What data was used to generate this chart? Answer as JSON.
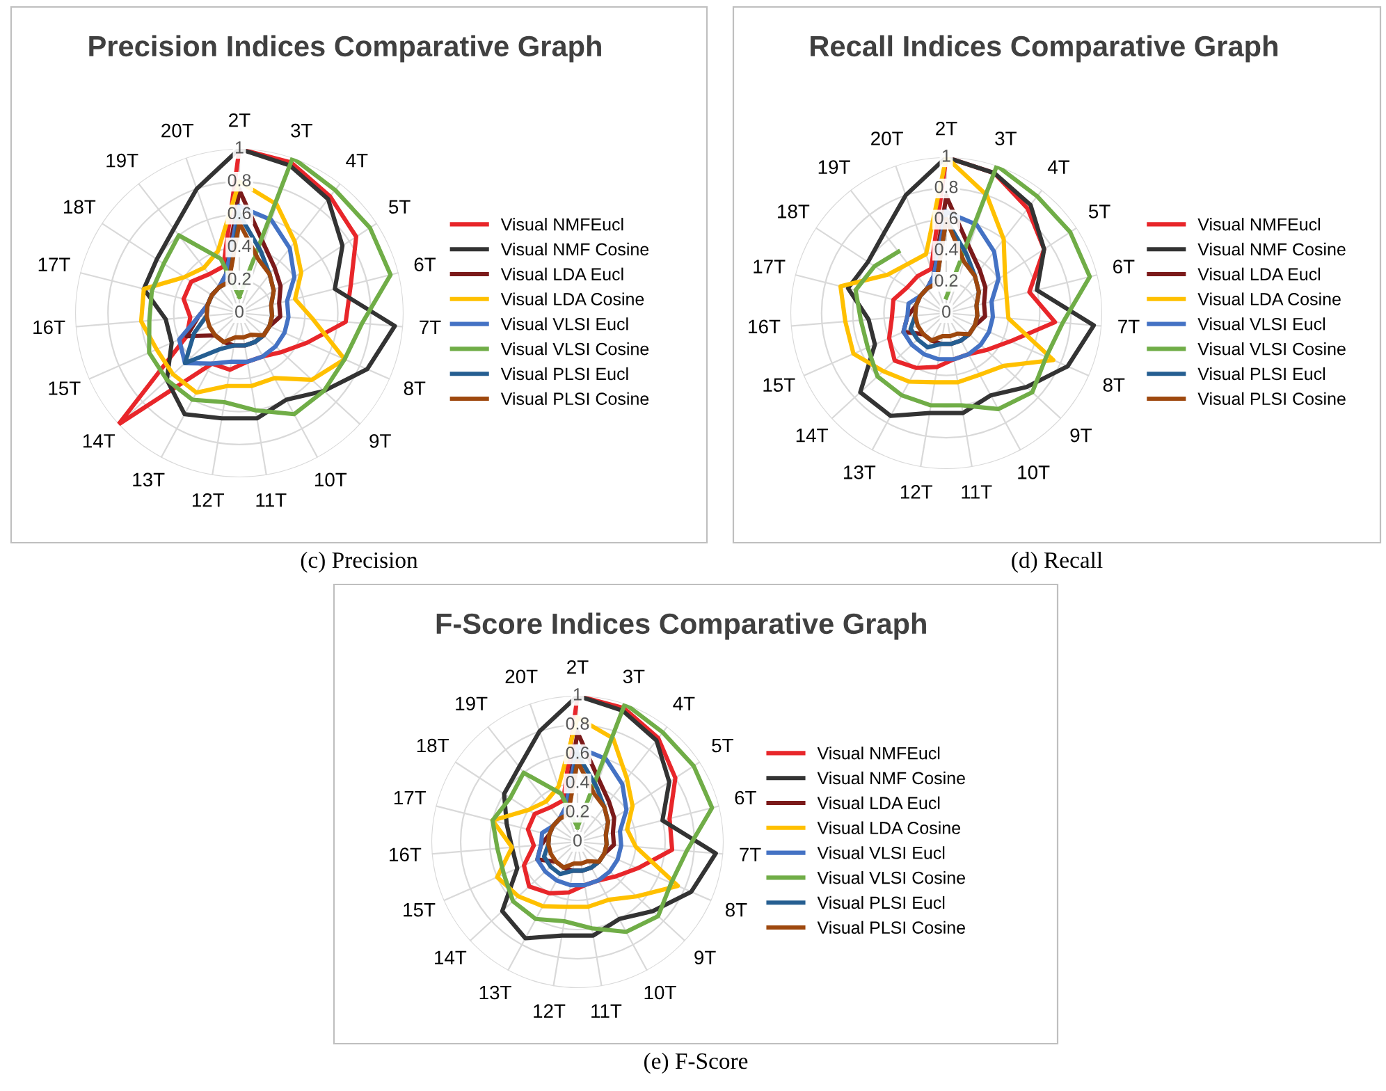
{
  "chart_data": [
    {
      "type": "radar",
      "title": "Precision Indices Comparative Graph",
      "categories": [
        "2T",
        "3T",
        "4T",
        "5T",
        "6T",
        "7T",
        "8T",
        "9T",
        "10T",
        "11T",
        "12T",
        "13T",
        "14T",
        "15T",
        "16T",
        "17T",
        "18T",
        "19T",
        "20T"
      ],
      "ylim": [
        0,
        1
      ],
      "yticks": [
        0,
        0.2,
        0.4,
        0.6,
        0.8,
        1
      ],
      "grid": true,
      "legend": "right",
      "annotations": [
        "(c) Precision"
      ],
      "series": [
        {
          "name": "Visual NMFEucl",
          "color": "#e8262a",
          "values": [
            1,
            0.97,
            0.9,
            0.85,
            0.7,
            0.65,
            0.45,
            0.35,
            0.3,
            0.3,
            0.35,
            0.35,
            1,
            0.35,
            0.3,
            0.35,
            0.35,
            0.3,
            0.3
          ]
        },
        {
          "name": "Visual NMF Cosine",
          "color": "#333333",
          "values": [
            1,
            0.95,
            0.88,
            0.75,
            0.6,
            0.95,
            0.85,
            0.7,
            0.6,
            0.65,
            0.65,
            0.7,
            0.6,
            0.45,
            0.45,
            0.6,
            0.6,
            0.65,
            0.8
          ]
        },
        {
          "name": "Visual LDA Eucl",
          "color": "#7b1a1a",
          "values": [
            0.75,
            0.45,
            0.35,
            0.3,
            0.25,
            0.25,
            0.2,
            0.2,
            0.2,
            0.2,
            0.2,
            0.2,
            0.2,
            0.35,
            0.25,
            0.2,
            0.2,
            0.2,
            0.25
          ]
        },
        {
          "name": "Visual LDA Cosine",
          "color": "#ffc000",
          "values": [
            0.8,
            0.7,
            0.55,
            0.45,
            0.35,
            0.45,
            0.7,
            0.6,
            0.45,
            0.45,
            0.45,
            0.55,
            0.55,
            0.55,
            0.6,
            0.6,
            0.4,
            0.35,
            0.4
          ]
        },
        {
          "name": "Visual VLSI Eucl",
          "color": "#4472c4",
          "values": [
            0.65,
            0.6,
            0.5,
            0.4,
            0.3,
            0.3,
            0.3,
            0.3,
            0.3,
            0.3,
            0.3,
            0.35,
            0.45,
            0.4,
            0.25,
            0.2,
            0.2,
            0.2,
            0.25
          ]
        },
        {
          "name": "Visual VLSI Cosine",
          "color": "#70ad47",
          "values": [
            0.1,
            1,
            0.95,
            0.95,
            0.95,
            0.75,
            0.7,
            0.7,
            0.7,
            0.6,
            0.55,
            0.6,
            0.6,
            0.6,
            0.55,
            0.55,
            0.55,
            0.6,
            0.35
          ]
        },
        {
          "name": "Visual PLSI Eucl",
          "color": "#255e91",
          "values": [
            0.6,
            0.4,
            0.3,
            0.25,
            0.2,
            0.2,
            0.2,
            0.2,
            0.2,
            0.2,
            0.2,
            0.25,
            0.45,
            0.3,
            0.2,
            0.2,
            0.2,
            0.2,
            0.2
          ]
        },
        {
          "name": "Visual PLSI Cosine",
          "color": "#9e480e",
          "values": [
            0.55,
            0.35,
            0.3,
            0.25,
            0.2,
            0.2,
            0.2,
            0.2,
            0.15,
            0.15,
            0.15,
            0.2,
            0.2,
            0.2,
            0.2,
            0.2,
            0.2,
            0.2,
            0.2
          ]
        }
      ]
    },
    {
      "type": "radar",
      "title": "Recall Indices Comparative Graph",
      "categories": [
        "2T",
        "3T",
        "4T",
        "5T",
        "6T",
        "7T",
        "8T",
        "9T",
        "10T",
        "11T",
        "12T",
        "13T",
        "14T",
        "15T",
        "16T",
        "17T",
        "18T",
        "19T",
        "20T"
      ],
      "ylim": [
        0,
        1
      ],
      "yticks": [
        0,
        0.2,
        0.4,
        0.6,
        0.8,
        1
      ],
      "grid": true,
      "legend": "right",
      "annotations": [
        "(d) Recall"
      ],
      "series": [
        {
          "name": "Visual NMFEucl",
          "color": "#e8262a",
          "values": [
            1,
            0.95,
            0.85,
            0.75,
            0.55,
            0.7,
            0.45,
            0.35,
            0.3,
            0.3,
            0.35,
            0.4,
            0.45,
            0.4,
            0.35,
            0.35,
            0.3,
            0.3,
            0.3
          ]
        },
        {
          "name": "Visual NMF Cosine",
          "color": "#333333",
          "values": [
            1,
            0.95,
            0.88,
            0.75,
            0.6,
            0.95,
            0.85,
            0.7,
            0.6,
            0.65,
            0.65,
            0.75,
            0.75,
            0.5,
            0.5,
            0.65,
            0.6,
            0.65,
            0.8
          ]
        },
        {
          "name": "Visual LDA Eucl",
          "color": "#7b1a1a",
          "values": [
            0.75,
            0.45,
            0.35,
            0.3,
            0.25,
            0.25,
            0.2,
            0.2,
            0.2,
            0.2,
            0.2,
            0.2,
            0.2,
            0.3,
            0.25,
            0.2,
            0.2,
            0.2,
            0.25
          ]
        },
        {
          "name": "Visual LDA Cosine",
          "color": "#ffc000",
          "values": [
            1,
            0.8,
            0.6,
            0.45,
            0.4,
            0.4,
            0.75,
            0.5,
            0.45,
            0.45,
            0.45,
            0.5,
            0.55,
            0.65,
            0.65,
            0.7,
            0.45,
            0.4,
            0.4
          ]
        },
        {
          "name": "Visual VLSI Eucl",
          "color": "#4472c4",
          "values": [
            0.65,
            0.6,
            0.5,
            0.4,
            0.3,
            0.3,
            0.3,
            0.3,
            0.3,
            0.3,
            0.3,
            0.3,
            0.3,
            0.3,
            0.25,
            0.25,
            0.2,
            0.2,
            0.25
          ]
        },
        {
          "name": "Visual VLSI Cosine",
          "color": "#70ad47",
          "values": [
            0.1,
            1,
            0.95,
            0.95,
            0.95,
            0.75,
            0.7,
            0.75,
            0.7,
            0.6,
            0.6,
            0.6,
            0.6,
            0.55,
            0.55,
            0.6,
            0.55,
            0.5,
            null
          ]
        },
        {
          "name": "Visual PLSI Eucl",
          "color": "#255e91",
          "values": [
            0.6,
            0.4,
            0.3,
            0.25,
            0.2,
            0.2,
            0.2,
            0.2,
            0.2,
            0.2,
            0.2,
            0.25,
            0.25,
            0.25,
            0.2,
            0.2,
            0.2,
            0.2,
            0.2
          ]
        },
        {
          "name": "Visual PLSI Cosine",
          "color": "#9e480e",
          "values": [
            0.6,
            0.35,
            0.3,
            0.25,
            0.2,
            0.2,
            0.2,
            0.2,
            0.15,
            0.15,
            0.15,
            0.2,
            0.2,
            0.2,
            0.2,
            0.2,
            0.2,
            0.2,
            0.2
          ]
        }
      ]
    },
    {
      "type": "radar",
      "title": "F-Score Indices Comparative Graph",
      "categories": [
        "2T",
        "3T",
        "4T",
        "5T",
        "6T",
        "7T",
        "8T",
        "9T",
        "10T",
        "11T",
        "12T",
        "13T",
        "14T",
        "15T",
        "16T",
        "17T",
        "18T",
        "19T",
        "20T"
      ],
      "ylim": [
        0,
        1
      ],
      "yticks": [
        0,
        0.2,
        0.4,
        0.6,
        0.8,
        1
      ],
      "grid": true,
      "legend": "right",
      "annotations": [
        "(e) F-Score"
      ],
      "series": [
        {
          "name": "Visual NMFEucl",
          "color": "#e8262a",
          "values": [
            1,
            0.97,
            0.9,
            0.8,
            0.65,
            0.65,
            0.45,
            0.35,
            0.3,
            0.3,
            0.35,
            0.4,
            0.45,
            0.4,
            0.3,
            0.35,
            0.35,
            0.3,
            0.3
          ]
        },
        {
          "name": "Visual NMF Cosine",
          "color": "#333333",
          "values": [
            1,
            0.95,
            0.88,
            0.75,
            0.6,
            0.95,
            0.85,
            0.7,
            0.6,
            0.65,
            0.65,
            0.75,
            0.7,
            0.45,
            0.45,
            0.5,
            0.6,
            0.65,
            0.8
          ]
        },
        {
          "name": "Visual LDA Eucl",
          "color": "#7b1a1a",
          "values": [
            0.75,
            0.45,
            0.35,
            0.3,
            0.25,
            0.25,
            0.2,
            0.2,
            0.2,
            0.2,
            0.2,
            0.2,
            0.2,
            0.3,
            0.25,
            0.2,
            0.2,
            0.2,
            0.25
          ]
        },
        {
          "name": "Visual LDA Cosine",
          "color": "#ffc000",
          "values": [
            0.85,
            0.75,
            0.55,
            0.45,
            0.35,
            0.4,
            0.75,
            0.55,
            0.45,
            0.45,
            0.45,
            0.5,
            0.55,
            0.6,
            0.45,
            0.6,
            0.4,
            0.35,
            0.4
          ]
        },
        {
          "name": "Visual VLSI Eucl",
          "color": "#4472c4",
          "values": [
            0.65,
            0.6,
            0.5,
            0.4,
            0.3,
            0.3,
            0.3,
            0.3,
            0.3,
            0.3,
            0.3,
            0.3,
            0.3,
            0.3,
            0.25,
            0.25,
            0.2,
            0.2,
            0.25
          ]
        },
        {
          "name": "Visual VLSI Cosine",
          "color": "#70ad47",
          "values": [
            0.1,
            1,
            0.95,
            0.95,
            0.95,
            0.75,
            0.7,
            0.75,
            0.7,
            0.6,
            0.55,
            0.6,
            0.6,
            0.55,
            0.55,
            0.6,
            0.55,
            0.6,
            0.35
          ]
        },
        {
          "name": "Visual PLSI Eucl",
          "color": "#255e91",
          "values": [
            0.6,
            0.4,
            0.3,
            0.25,
            0.2,
            0.2,
            0.2,
            0.2,
            0.2,
            0.2,
            0.2,
            0.25,
            0.25,
            0.25,
            0.2,
            0.2,
            0.2,
            0.2,
            0.2
          ]
        },
        {
          "name": "Visual PLSI Cosine",
          "color": "#9e480e",
          "values": [
            0.55,
            0.35,
            0.3,
            0.25,
            0.2,
            0.2,
            0.2,
            0.2,
            0.15,
            0.15,
            0.15,
            0.2,
            0.2,
            0.2,
            0.2,
            0.2,
            0.2,
            0.2,
            0.2
          ]
        }
      ]
    }
  ]
}
